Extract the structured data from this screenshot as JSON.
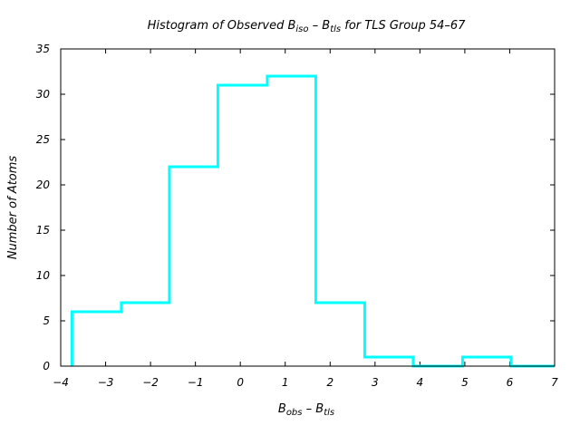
{
  "chart_data": {
    "type": "histogram",
    "title": "Histogram of Observed B iso – B tls for TLS Group 54-67",
    "title_parts": {
      "pre": "Histogram of Observed B",
      "sub1": "iso",
      "mid": " – B",
      "sub2": "tls",
      "post": " for TLS Group 54–67"
    },
    "xlabel": "B obs – B tls",
    "xlabel_parts": {
      "pre": "B",
      "sub1": "obs",
      "mid": " – B",
      "sub2": "tls"
    },
    "ylabel": "Number of Atoms",
    "xlim": [
      -4,
      7
    ],
    "ylim": [
      0,
      35
    ],
    "xticks": [
      "−4",
      "−3",
      "−2",
      "−1",
      "0",
      "1",
      "2",
      "3",
      "4",
      "5",
      "6",
      "7"
    ],
    "yticks": [
      "0",
      "5",
      "10",
      "15",
      "20",
      "25",
      "30",
      "35"
    ],
    "grid": false,
    "series_color": "#00ffff",
    "bin_edges": [
      -3.75,
      -2.65,
      -1.58,
      -0.5,
      0.6,
      1.68,
      2.77,
      3.85,
      4.95,
      6.03,
      7.0
    ],
    "counts": [
      6,
      7,
      22,
      31,
      32,
      7,
      1,
      0,
      1,
      0
    ]
  }
}
